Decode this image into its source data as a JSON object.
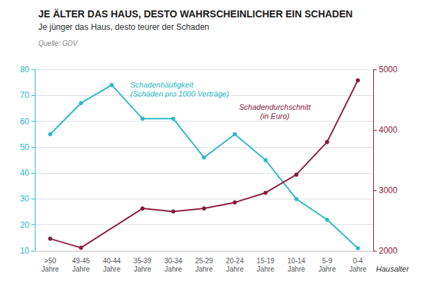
{
  "chart_data": {
    "type": "line",
    "title": "JE ÄLTER DAS HAUS, DESTO WAHRSCHEINLICHER EIN SCHADEN",
    "subtitle": "Je jünger das Haus, desto teurer der Schaden",
    "annotations": [
      "Quelle: GDV"
    ],
    "xlabel": "Hausalter",
    "categories": [
      ">50\nJahre",
      "49-45\nJahre",
      "40-44\nJahre",
      "35-39\nJahre",
      "30-34\nJahre",
      "25-29\nJahre",
      "20-24\nJahre",
      "15-19\nJahre",
      "10-14\nJahre",
      "5-9\nJahre",
      "0-4\nJahre"
    ],
    "series": [
      {
        "name": "Schadenhäufigkeit\n(Schäden pro 1000 Verträge)",
        "color": "#2BB8C8",
        "values": [
          55,
          67,
          74,
          61,
          61,
          46,
          55,
          45,
          30,
          22,
          11
        ]
      },
      {
        "name": "Schadendurchschnitt\n(in Euro)",
        "color": "#8B1A3A",
        "axis": "y2",
        "values": [
          2200,
          2050,
          null,
          2700,
          2650,
          2700,
          2800,
          2960,
          3260,
          3800,
          4820
        ]
      }
    ],
    "ylim": [
      10,
      80
    ],
    "yticks": [
      10,
      20,
      30,
      40,
      50,
      60,
      70,
      80
    ],
    "y2lim": [
      2000,
      5000
    ],
    "y2ticks": [
      2000,
      3000,
      4000,
      5000
    ],
    "grid": true
  }
}
